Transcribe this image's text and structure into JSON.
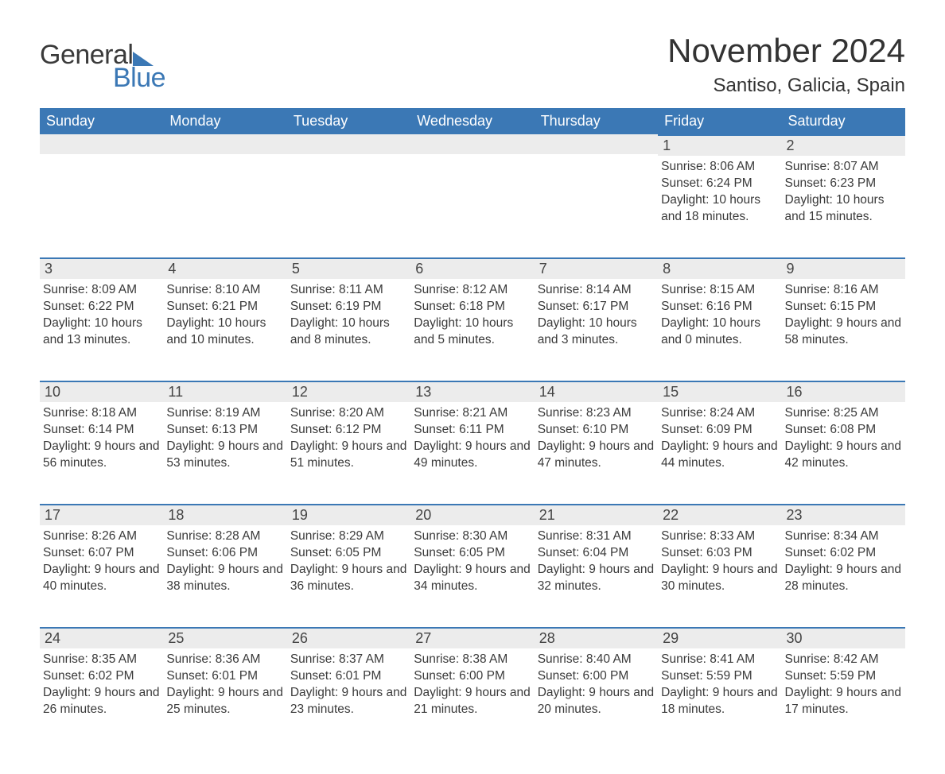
{
  "brand": {
    "word1": "General",
    "word2": "Blue",
    "accent": "#3b78b5"
  },
  "title": "November 2024",
  "subtitle": "Santiso, Galicia, Spain",
  "day_headers": [
    "Sunday",
    "Monday",
    "Tuesday",
    "Wednesday",
    "Thursday",
    "Friday",
    "Saturday"
  ],
  "colors": {
    "header_bg": "#3b78b5",
    "header_text": "#ffffff",
    "daynum_bg": "#ececec",
    "row_divider": "#3b78b5",
    "body_text": "#3a3a3a",
    "page_bg": "#ffffff"
  },
  "typography": {
    "title_fontsize": 42,
    "subtitle_fontsize": 24,
    "header_fontsize": 18,
    "daynum_fontsize": 18,
    "body_fontsize": 15.5
  },
  "layout": {
    "columns": 7,
    "rows": 5,
    "first_weekday_index": 5
  },
  "weeks": [
    [
      null,
      null,
      null,
      null,
      null,
      {
        "n": "1",
        "sunrise": "Sunrise: 8:06 AM",
        "sunset": "Sunset: 6:24 PM",
        "dl": "Daylight: 10 hours and 18 minutes."
      },
      {
        "n": "2",
        "sunrise": "Sunrise: 8:07 AM",
        "sunset": "Sunset: 6:23 PM",
        "dl": "Daylight: 10 hours and 15 minutes."
      }
    ],
    [
      {
        "n": "3",
        "sunrise": "Sunrise: 8:09 AM",
        "sunset": "Sunset: 6:22 PM",
        "dl": "Daylight: 10 hours and 13 minutes."
      },
      {
        "n": "4",
        "sunrise": "Sunrise: 8:10 AM",
        "sunset": "Sunset: 6:21 PM",
        "dl": "Daylight: 10 hours and 10 minutes."
      },
      {
        "n": "5",
        "sunrise": "Sunrise: 8:11 AM",
        "sunset": "Sunset: 6:19 PM",
        "dl": "Daylight: 10 hours and 8 minutes."
      },
      {
        "n": "6",
        "sunrise": "Sunrise: 8:12 AM",
        "sunset": "Sunset: 6:18 PM",
        "dl": "Daylight: 10 hours and 5 minutes."
      },
      {
        "n": "7",
        "sunrise": "Sunrise: 8:14 AM",
        "sunset": "Sunset: 6:17 PM",
        "dl": "Daylight: 10 hours and 3 minutes."
      },
      {
        "n": "8",
        "sunrise": "Sunrise: 8:15 AM",
        "sunset": "Sunset: 6:16 PM",
        "dl": "Daylight: 10 hours and 0 minutes."
      },
      {
        "n": "9",
        "sunrise": "Sunrise: 8:16 AM",
        "sunset": "Sunset: 6:15 PM",
        "dl": "Daylight: 9 hours and 58 minutes."
      }
    ],
    [
      {
        "n": "10",
        "sunrise": "Sunrise: 8:18 AM",
        "sunset": "Sunset: 6:14 PM",
        "dl": "Daylight: 9 hours and 56 minutes."
      },
      {
        "n": "11",
        "sunrise": "Sunrise: 8:19 AM",
        "sunset": "Sunset: 6:13 PM",
        "dl": "Daylight: 9 hours and 53 minutes."
      },
      {
        "n": "12",
        "sunrise": "Sunrise: 8:20 AM",
        "sunset": "Sunset: 6:12 PM",
        "dl": "Daylight: 9 hours and 51 minutes."
      },
      {
        "n": "13",
        "sunrise": "Sunrise: 8:21 AM",
        "sunset": "Sunset: 6:11 PM",
        "dl": "Daylight: 9 hours and 49 minutes."
      },
      {
        "n": "14",
        "sunrise": "Sunrise: 8:23 AM",
        "sunset": "Sunset: 6:10 PM",
        "dl": "Daylight: 9 hours and 47 minutes."
      },
      {
        "n": "15",
        "sunrise": "Sunrise: 8:24 AM",
        "sunset": "Sunset: 6:09 PM",
        "dl": "Daylight: 9 hours and 44 minutes."
      },
      {
        "n": "16",
        "sunrise": "Sunrise: 8:25 AM",
        "sunset": "Sunset: 6:08 PM",
        "dl": "Daylight: 9 hours and 42 minutes."
      }
    ],
    [
      {
        "n": "17",
        "sunrise": "Sunrise: 8:26 AM",
        "sunset": "Sunset: 6:07 PM",
        "dl": "Daylight: 9 hours and 40 minutes."
      },
      {
        "n": "18",
        "sunrise": "Sunrise: 8:28 AM",
        "sunset": "Sunset: 6:06 PM",
        "dl": "Daylight: 9 hours and 38 minutes."
      },
      {
        "n": "19",
        "sunrise": "Sunrise: 8:29 AM",
        "sunset": "Sunset: 6:05 PM",
        "dl": "Daylight: 9 hours and 36 minutes."
      },
      {
        "n": "20",
        "sunrise": "Sunrise: 8:30 AM",
        "sunset": "Sunset: 6:05 PM",
        "dl": "Daylight: 9 hours and 34 minutes."
      },
      {
        "n": "21",
        "sunrise": "Sunrise: 8:31 AM",
        "sunset": "Sunset: 6:04 PM",
        "dl": "Daylight: 9 hours and 32 minutes."
      },
      {
        "n": "22",
        "sunrise": "Sunrise: 8:33 AM",
        "sunset": "Sunset: 6:03 PM",
        "dl": "Daylight: 9 hours and 30 minutes."
      },
      {
        "n": "23",
        "sunrise": "Sunrise: 8:34 AM",
        "sunset": "Sunset: 6:02 PM",
        "dl": "Daylight: 9 hours and 28 minutes."
      }
    ],
    [
      {
        "n": "24",
        "sunrise": "Sunrise: 8:35 AM",
        "sunset": "Sunset: 6:02 PM",
        "dl": "Daylight: 9 hours and 26 minutes."
      },
      {
        "n": "25",
        "sunrise": "Sunrise: 8:36 AM",
        "sunset": "Sunset: 6:01 PM",
        "dl": "Daylight: 9 hours and 25 minutes."
      },
      {
        "n": "26",
        "sunrise": "Sunrise: 8:37 AM",
        "sunset": "Sunset: 6:01 PM",
        "dl": "Daylight: 9 hours and 23 minutes."
      },
      {
        "n": "27",
        "sunrise": "Sunrise: 8:38 AM",
        "sunset": "Sunset: 6:00 PM",
        "dl": "Daylight: 9 hours and 21 minutes."
      },
      {
        "n": "28",
        "sunrise": "Sunrise: 8:40 AM",
        "sunset": "Sunset: 6:00 PM",
        "dl": "Daylight: 9 hours and 20 minutes."
      },
      {
        "n": "29",
        "sunrise": "Sunrise: 8:41 AM",
        "sunset": "Sunset: 5:59 PM",
        "dl": "Daylight: 9 hours and 18 minutes."
      },
      {
        "n": "30",
        "sunrise": "Sunrise: 8:42 AM",
        "sunset": "Sunset: 5:59 PM",
        "dl": "Daylight: 9 hours and 17 minutes."
      }
    ]
  ]
}
